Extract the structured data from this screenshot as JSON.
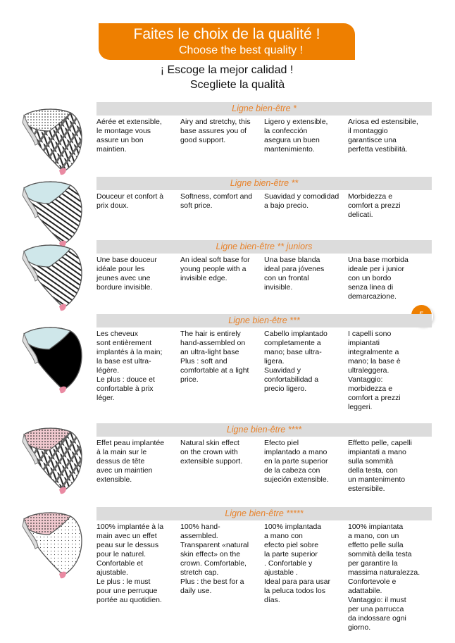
{
  "title": {
    "fr": "Faites le choix de la qualité !",
    "en": "Choose the best quality !",
    "es": "¡ Escoge la mejor calidad !",
    "it": "Scegliete la qualità"
  },
  "page_number": "5",
  "colors": {
    "accent": "#ee7f00",
    "header_bg": "#dcdcdc",
    "header_text": "#e8822a"
  },
  "sections": [
    {
      "title": "Ligne bien-être *",
      "texts": [
        "Aérée et extensible,\nle montage vous\nassure un bon\nmaintien.",
        "Airy and stretchy, this\nbase assures you of\ngood support.",
        "Ligero y extensible,\nla confección\nasegura un buen\nmantenimiento.",
        "Ariosa ed estensibile,\nil montaggio\ngarantisce una\nperfetta vestibilità."
      ]
    },
    {
      "title": "Ligne bien-être **",
      "texts": [
        "Douceur et confort à\nprix doux.",
        "Softness, comfort and\nsoft price.",
        "Suavidad y comodidad\na bajo precio.",
        "Morbidezza e\ncomfort a prezzi\ndelicati."
      ]
    },
    {
      "title": "Ligne bien-être ** juniors",
      "texts": [
        "Une base douceur\nidéale pour les\njeunes avec une\nbordure invisible.",
        "An ideal soft base for\nyoung people with a\ninvisible edge.",
        "Una base blanda\nideal para jóvenes\ncon un frontal\ninvisible.",
        "Una base morbida\nideale per i junior\ncon un bordo\nsenza linea di\ndemarcazione."
      ]
    },
    {
      "title": "Ligne bien-être ***",
      "texts": [
        "Les cheveux\nsont entièrement\nimplantés à la main;\nla base est ultra-\nlégère.\nLe plus : douce et\nconfortable à prix\nléger.",
        "The hair is entirely\nhand-assembled on\nan ultra-light base\nPlus : soft and\ncomfortable at a light\nprice.",
        "Cabello implantado\ncompletamente a\nmano; base ultra-\nligera.\nSuavidad y\nconfortabilidad a\nprecio ligero.",
        "I capelli sono\nimpiantati\nintegralmente a\nmano; la base è\nultraleggera.\nVantaggio:\nmorbidezza e\ncomfort a prezzi\nleggeri."
      ]
    },
    {
      "title": "Ligne bien-être ****",
      "texts": [
        "Effet peau implantée\nà la main sur le\ndessus de tête\navec un maintien\nextensible.",
        "Natural skin effect\non the crown with\nextensible support.",
        "Efecto piel\nimplantado a mano\nen la parte superior\nde la cabeza con\nsujeción extensible.",
        "Effetto pelle, capelli\nimpiantati a mano\nsulla sommità\ndella testa, con\nun mantenimento\nestensibile."
      ]
    },
    {
      "title": "Ligne bien-être *****",
      "texts": [
        "100% implantée à la\nmain avec un effet\npeau sur le dessus\npour le naturel.\nConfortable et\najustable.\nLe plus : le must\npour une perruque\nportée au quotidien.",
        "100% hand-\nassembled.\nTransparent «natural\nskin effect» on the\ncrown. Comfortable,\nstretch cap.\nPlus : the best for a\ndaily use.",
        "100% implantada\na mano con\nefecto piel sobre\nla parte superior\n. Confortable y\najustable .\nIdeal para para  usar\nla peluca todos los\ndías.",
        "100% impiantata\na mano, con un\neffetto pelle sulla\nsommità della testa\nper garantire la\nmassima naturalezza.\nConfortevole e\nadattabile.\nVantaggio: il must\nper una parrucca\nda indossare ogni\ngiorno."
      ]
    }
  ]
}
